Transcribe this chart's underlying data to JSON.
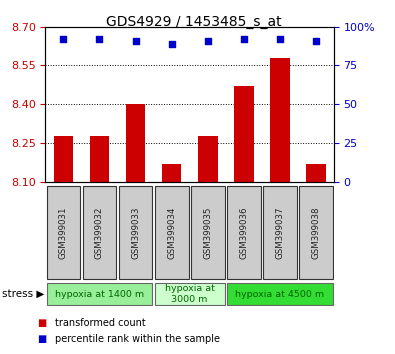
{
  "title": "GDS4929 / 1453485_s_at",
  "samples": [
    "GSM399031",
    "GSM399032",
    "GSM399033",
    "GSM399034",
    "GSM399035",
    "GSM399036",
    "GSM399037",
    "GSM399038"
  ],
  "bar_values": [
    8.28,
    8.28,
    8.4,
    8.17,
    8.28,
    8.47,
    8.58,
    8.17
  ],
  "percentile_values": [
    92,
    92,
    91,
    89,
    91,
    92,
    92,
    91
  ],
  "ylim_left": [
    8.1,
    8.7
  ],
  "ylim_right": [
    0,
    100
  ],
  "yticks_left": [
    8.1,
    8.25,
    8.4,
    8.55,
    8.7
  ],
  "yticks_right": [
    0,
    25,
    50,
    75,
    100
  ],
  "bar_color": "#cc0000",
  "dot_color": "#0000cc",
  "groups": [
    {
      "label": "hypoxia at 1400 m",
      "start": 0,
      "end": 3,
      "color": "#99ee99"
    },
    {
      "label": "hypoxia at\n3000 m",
      "start": 3,
      "end": 5,
      "color": "#ccffcc"
    },
    {
      "label": "hypoxia at 4500 m",
      "start": 5,
      "end": 8,
      "color": "#33dd33"
    }
  ],
  "stress_label": "stress",
  "legend_bar_label": "transformed count",
  "legend_dot_label": "percentile rank within the sample",
  "tick_color_left": "#cc0000",
  "tick_color_right": "#0000cc",
  "box_facecolor": "#cccccc",
  "box_edgecolor": "#333333"
}
